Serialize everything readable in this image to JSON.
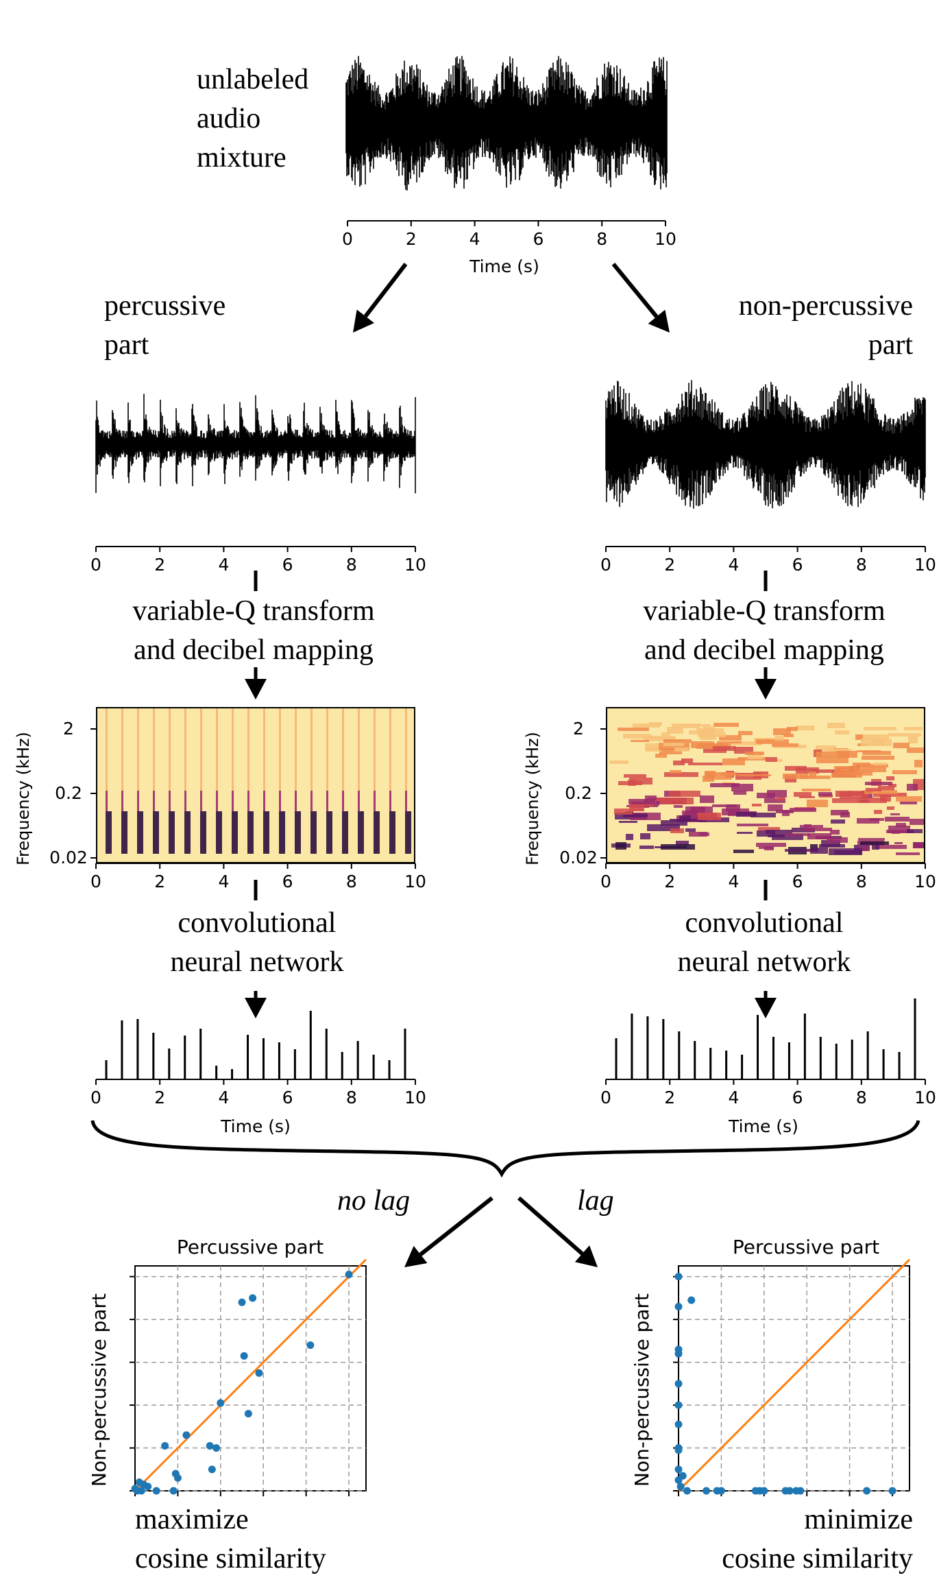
{
  "mixture": {
    "label": "unlabeled\naudio\nmixture",
    "ticks": [
      "0",
      "2",
      "4",
      "6",
      "8",
      "10"
    ],
    "xlabel": "Time (s)"
  },
  "left": {
    "part_label": "percussive\npart",
    "ticks": [
      "0",
      "2",
      "4",
      "6",
      "8",
      "10"
    ],
    "transform_label": "variable-Q transform\nand decibel mapping",
    "spec_ylabel": "Frequency (kHz)",
    "spec_yticks": [
      "2",
      "0.2",
      "0.02"
    ],
    "cnn_label": "convolutional\nneural network",
    "time_label": "Time (s)"
  },
  "right": {
    "part_label": "non-percussive\npart",
    "ticks": [
      "0",
      "2",
      "4",
      "6",
      "8",
      "10"
    ],
    "transform_label": "variable-Q transform\nand decibel mapping",
    "spec_ylabel": "Frequency (kHz)",
    "spec_yticks": [
      "2",
      "0.2",
      "0.02"
    ],
    "cnn_label": "convolutional\nneural network",
    "time_label": "Time (s)"
  },
  "branches": {
    "no_lag": "no lag",
    "lag": "lag"
  },
  "scatter_left": {
    "title": "Percussive part",
    "ylabel": "Non-percussive part",
    "caption": "maximize\ncosine similarity",
    "colors": {
      "points": "#1f77b4",
      "line": "#ff7f0e"
    }
  },
  "scatter_right": {
    "title": "Percussive part",
    "ylabel": "Non-percussive part",
    "caption": "minimize\ncosine similarity",
    "colors": {
      "points": "#1f77b4",
      "line": "#ff7f0e"
    }
  },
  "chart_data": [
    {
      "type": "scatter",
      "title": "Percussive part",
      "ylabel": "Non-percussive part",
      "xlim": [
        0,
        1.08
      ],
      "ylim": [
        0,
        1.05
      ],
      "points": [
        [
          1.0,
          1.01
        ],
        [
          0.55,
          0.9
        ],
        [
          0.5,
          0.88
        ],
        [
          0.82,
          0.68
        ],
        [
          0.51,
          0.63
        ],
        [
          0.58,
          0.55
        ],
        [
          0.4,
          0.41
        ],
        [
          0.53,
          0.36
        ],
        [
          0.24,
          0.26
        ],
        [
          0.14,
          0.21
        ],
        [
          0.35,
          0.21
        ],
        [
          0.38,
          0.2
        ],
        [
          0.36,
          0.1
        ],
        [
          0.19,
          0.08
        ],
        [
          0.2,
          0.06
        ],
        [
          0.02,
          0.04
        ],
        [
          0.04,
          0.03
        ],
        [
          0.06,
          0.02
        ],
        [
          0.0,
          0.01
        ],
        [
          0.03,
          0.0
        ],
        [
          0.1,
          0.0
        ],
        [
          0.18,
          0.0
        ],
        [
          0.01,
          0.0
        ]
      ],
      "reference_line": "y = x"
    },
    {
      "type": "scatter",
      "title": "Percussive part",
      "ylabel": "Non-percussive part",
      "xlim": [
        0,
        1.08
      ],
      "ylim": [
        0,
        1.05
      ],
      "points": [
        [
          0.0,
          1.0
        ],
        [
          0.06,
          0.89
        ],
        [
          0.0,
          0.86
        ],
        [
          0.0,
          0.66
        ],
        [
          0.0,
          0.64
        ],
        [
          0.0,
          0.5
        ],
        [
          0.0,
          0.4
        ],
        [
          0.0,
          0.31
        ],
        [
          0.0,
          0.2
        ],
        [
          0.0,
          0.19
        ],
        [
          0.0,
          0.1
        ],
        [
          0.02,
          0.07
        ],
        [
          0.0,
          0.05
        ],
        [
          0.01,
          0.02
        ],
        [
          0.04,
          0.0
        ],
        [
          0.13,
          0.0
        ],
        [
          0.18,
          0.0
        ],
        [
          0.2,
          0.0
        ],
        [
          0.36,
          0.0
        ],
        [
          0.38,
          0.0
        ],
        [
          0.4,
          0.0
        ],
        [
          0.5,
          0.0
        ],
        [
          0.52,
          0.0
        ],
        [
          0.55,
          0.0
        ],
        [
          0.57,
          0.0
        ],
        [
          0.88,
          0.0
        ],
        [
          1.0,
          0.0
        ]
      ],
      "reference_line": "y = x"
    }
  ]
}
